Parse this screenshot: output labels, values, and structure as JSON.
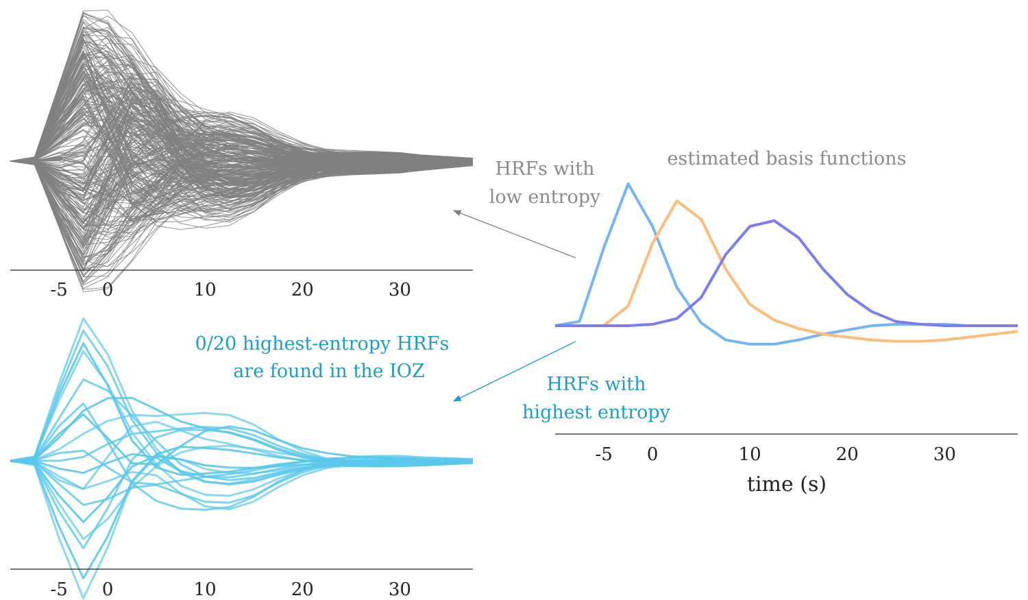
{
  "colors": {
    "gray_traces": "#808080",
    "blue_traces": "#5ac8ec",
    "blue_text": "#1a9ec9",
    "basis_blue": "#74b6f5",
    "basis_orange": "#ffbb78",
    "basis_purple": "#7b7bf2"
  },
  "annotations": {
    "low_entropy_line1": "HRFs with",
    "low_entropy_line2": "low entropy",
    "high_entropy_line1": "HRFs with",
    "high_entropy_line2": "highest entropy",
    "ioz_line1": "0/20 highest-entropy HRFs",
    "ioz_line2": "are found in the IOZ"
  },
  "chart_data": [
    {
      "id": "low-entropy-hrfs",
      "type": "line",
      "title": "",
      "xlabel": "",
      "ylabel": "",
      "x": [
        -7.5,
        -5,
        -2.5,
        0,
        2.5,
        5,
        7.5,
        10,
        12.5,
        15,
        17.5,
        20,
        22.5,
        25,
        27.5,
        30,
        32.5,
        35,
        37.5
      ],
      "xlim": [
        -10,
        37.5
      ],
      "xticks": [
        -5,
        0,
        10,
        20,
        30
      ],
      "ylim": [
        -0.95,
        1.1
      ],
      "n_series": 300,
      "note_series": "hundreds of gray overlapping HRF traces (weighted sums of the basis functions)",
      "weight_range": {
        "blue": [
          -0.95,
          1.1
        ],
        "orange": [
          -0.6,
          0.9
        ],
        "purple": [
          -0.5,
          0.4
        ]
      }
    },
    {
      "id": "highest-entropy-hrfs",
      "type": "line",
      "title": "",
      "xlabel": "",
      "ylabel": "",
      "x": [
        -7.5,
        -5,
        -2.5,
        0,
        2.5,
        5,
        7.5,
        10,
        12.5,
        15,
        17.5,
        20,
        22.5,
        25,
        27.5,
        30,
        32.5,
        35,
        37.5
      ],
      "xlim": [
        -10,
        37.5
      ],
      "xticks": [
        -5,
        0,
        10,
        20,
        30
      ],
      "ylim": [
        -1.0,
        1.0
      ],
      "series": [
        {
          "weights": [
            1.0,
            0.1,
            -0.05
          ]
        },
        {
          "weights": [
            0.92,
            0.05,
            0.0
          ]
        },
        {
          "weights": [
            0.85,
            -0.1,
            0.05
          ]
        },
        {
          "weights": [
            0.78,
            0.0,
            -0.2
          ]
        },
        {
          "weights": [
            0.55,
            0.2,
            -0.1
          ]
        },
        {
          "weights": [
            0.3,
            0.4,
            0.3
          ]
        },
        {
          "weights": [
            0.15,
            0.3,
            0.45
          ]
        },
        {
          "weights": [
            0.0,
            0.2,
            0.3
          ]
        },
        {
          "weights": [
            -0.1,
            0.1,
            -0.25
          ]
        },
        {
          "weights": [
            -0.2,
            0.0,
            -0.5
          ]
        },
        {
          "weights": [
            -0.3,
            -0.1,
            -0.45
          ]
        },
        {
          "weights": [
            -0.45,
            0.1,
            -0.15
          ]
        },
        {
          "weights": [
            -0.55,
            -0.05,
            0.05
          ]
        },
        {
          "weights": [
            -0.65,
            0.2,
            0.15
          ]
        },
        {
          "weights": [
            -0.85,
            0.1,
            -0.05
          ]
        },
        {
          "weights": [
            -1.0,
            0.15,
            -0.3
          ]
        },
        {
          "weights": [
            0.45,
            -0.3,
            -0.35
          ]
        },
        {
          "weights": [
            0.35,
            -0.15,
            0.4
          ]
        },
        {
          "weights": [
            -0.25,
            0.35,
            0.1
          ]
        },
        {
          "weights": [
            0.1,
            -0.2,
            -0.1
          ]
        }
      ]
    },
    {
      "id": "estimated-basis-functions",
      "type": "line",
      "title": "estimated basis functions",
      "xlabel": "time (s)",
      "ylabel": "",
      "x": [
        -10,
        -7.5,
        -5,
        -2.5,
        0,
        2.5,
        5,
        7.5,
        10,
        12.5,
        15,
        17.5,
        20,
        22.5,
        25,
        27.5,
        30,
        32.5,
        35,
        37.5
      ],
      "xlim": [
        -10,
        37.5
      ],
      "xticks": [
        -5,
        0,
        10,
        20,
        30
      ],
      "ylim": [
        -0.35,
        1.0
      ],
      "series": [
        {
          "color_key": "basis_blue",
          "values": [
            0.0,
            0.03,
            0.55,
            1.0,
            0.7,
            0.27,
            0.02,
            -0.1,
            -0.13,
            -0.13,
            -0.1,
            -0.06,
            -0.03,
            0.0,
            0.01,
            0.01,
            0.01,
            0.0,
            0.0,
            0.0
          ]
        },
        {
          "color_key": "basis_orange",
          "values": [
            0.0,
            0.0,
            0.0,
            0.14,
            0.58,
            0.88,
            0.75,
            0.4,
            0.15,
            0.04,
            -0.02,
            -0.06,
            -0.08,
            -0.1,
            -0.11,
            -0.11,
            -0.1,
            -0.08,
            -0.06,
            -0.04
          ]
        },
        {
          "color_key": "basis_purple",
          "values": [
            0.0,
            0.0,
            0.0,
            0.0,
            0.01,
            0.05,
            0.2,
            0.5,
            0.7,
            0.74,
            0.62,
            0.4,
            0.22,
            0.1,
            0.03,
            0.01,
            0.0,
            0.0,
            0.0,
            0.0
          ]
        }
      ]
    }
  ]
}
